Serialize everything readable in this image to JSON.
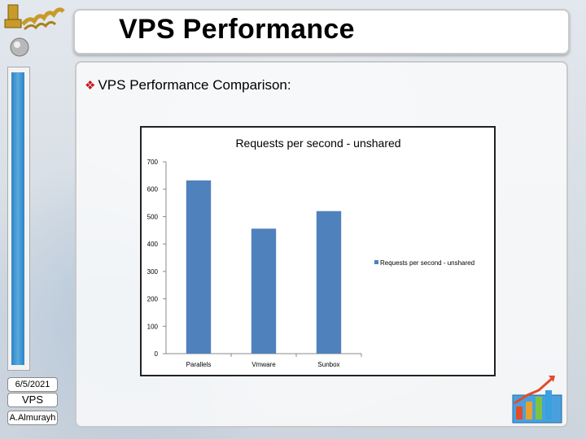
{
  "slide": {
    "title": "VPS Performance",
    "subtitle_bullet": "❖",
    "subtitle": "VPS Performance Comparison",
    "subtitle_colon": ":"
  },
  "footer": {
    "date": "6/5/2021",
    "topic": "VPS",
    "author": "A.Almurayh"
  },
  "colors": {
    "bar": "#4f81bd",
    "bullet": "#c0181f",
    "strip": "#2b85c7"
  },
  "chart_data": {
    "type": "bar",
    "title": "Requests per second - unshared",
    "categories": [
      "Parallels",
      "Vmware",
      "Sunbox"
    ],
    "series": [
      {
        "name": "Requests per second - unshared",
        "values": [
          632,
          456,
          520
        ]
      }
    ],
    "ylim": [
      0,
      700
    ],
    "yticks": [
      0,
      100,
      200,
      300,
      400,
      500,
      600,
      700
    ],
    "xlabel": "",
    "ylabel": "",
    "legend": "right",
    "grid": false
  }
}
